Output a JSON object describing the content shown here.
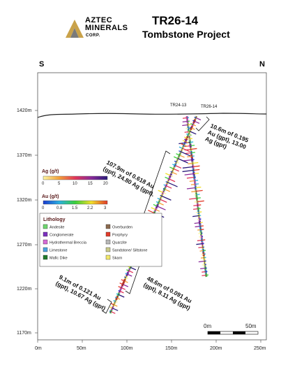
{
  "header": {
    "logo": {
      "line1": "AZTEC",
      "line2": "MINERALS",
      "line3": "CORP."
    },
    "title": "TR26-14",
    "subtitle": "Tombstone Project"
  },
  "compass": {
    "left": "S",
    "right": "N"
  },
  "axes": {
    "y_ticks": [
      "1420m",
      "1370m",
      "1320m",
      "1270m",
      "1220m",
      "1170m"
    ],
    "x_ticks": [
      "0m",
      "50m",
      "100m",
      "150m",
      "200m",
      "250m"
    ]
  },
  "drill_holes": [
    {
      "label": "TR24-13"
    },
    {
      "label": "TR26-14"
    }
  ],
  "annotations": [
    {
      "text_lines": [
        "10.6m of 0.195",
        "Au (gpt), 13.00",
        "Ag (gpt)"
      ]
    },
    {
      "text_lines": [
        "107.9m of 0.618 Au",
        "(gpt), 24.80 Ag (gpt)."
      ]
    },
    {
      "text_lines": [
        "48.6m of 0.091 Au",
        "(gpt), 8.11 Ag (gpt)"
      ]
    },
    {
      "text_lines": [
        "9.1m of 0.121 Au",
        "(gpt), 10.67 Ag (gpt)"
      ]
    }
  ],
  "legend": {
    "ag": {
      "title": "Ag (g/t)",
      "ticks": [
        "0",
        "5",
        "10",
        "15",
        "20"
      ]
    },
    "au": {
      "title": "Au (g/t)",
      "ticks": [
        "0",
        "0.8",
        "1.5",
        "2.2",
        "3"
      ]
    },
    "lithology": {
      "title": "Lithology",
      "items": [
        {
          "label": "Andesite",
          "color": "#6fd66f"
        },
        {
          "label": "Overburden",
          "color": "#8b6a4e"
        },
        {
          "label": "Conglomerate",
          "color": "#7b2fbf"
        },
        {
          "label": "Porphyry",
          "color": "#e23b2a"
        },
        {
          "label": "Hydrothermal Breccia",
          "color": "#d66ad6"
        },
        {
          "label": "Quarzite",
          "color": "#b8b8b8"
        },
        {
          "label": "Limestone",
          "color": "#4aa3e0"
        },
        {
          "label": "Sandstone/ Siltstone",
          "color": "#c9c98a"
        },
        {
          "label": "Mafic Dike",
          "color": "#1f7a2a"
        },
        {
          "label": "Skarn",
          "color": "#f2e86a"
        }
      ]
    }
  },
  "scale_bar": {
    "left": "0m",
    "right": "50m"
  },
  "colors": {
    "ag_ramp": [
      "#fdf5a0",
      "#f5a03a",
      "#e2375a",
      "#8a2a9a",
      "#2a1a7a"
    ],
    "au_ramp": [
      "#1a3ad0",
      "#2ab0e0",
      "#3ad03a",
      "#f2e02a",
      "#e23a2a"
    ]
  }
}
